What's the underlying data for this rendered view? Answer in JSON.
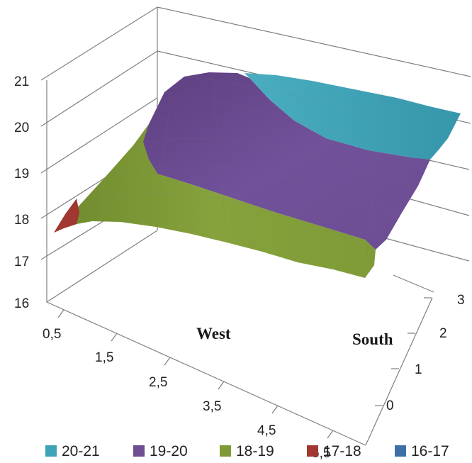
{
  "chart_data": {
    "type": "surface",
    "title": "",
    "x_axis": {
      "label": "West",
      "categories": [
        "0,5",
        "1,5",
        "2,5",
        "3,5",
        "4,5",
        "5,5"
      ]
    },
    "depth_axis": {
      "label": "South",
      "ticks": [
        "0",
        "1",
        "2",
        "3"
      ]
    },
    "z_axis": {
      "ticks": [
        "16",
        "17",
        "18",
        "19",
        "20",
        "21"
      ],
      "range": [
        16,
        21
      ]
    },
    "legend": {
      "position": "bottom",
      "items": [
        {
          "label": "20-21",
          "color": "#3fa3b8"
        },
        {
          "label": "19-20",
          "color": "#6e4e90"
        },
        {
          "label": "18-19",
          "color": "#7e9a36"
        },
        {
          "label": "17-18",
          "color": "#a03731"
        },
        {
          "label": "16-17",
          "color": "#3f6fa8"
        }
      ]
    },
    "bands": [
      {
        "range": "20-21",
        "color": "#3fa3b8"
      },
      {
        "range": "19-20",
        "color": "#6e4e90"
      },
      {
        "range": "18-19",
        "color": "#7e9a36"
      },
      {
        "range": "17-18",
        "color": "#a03731"
      }
    ]
  }
}
